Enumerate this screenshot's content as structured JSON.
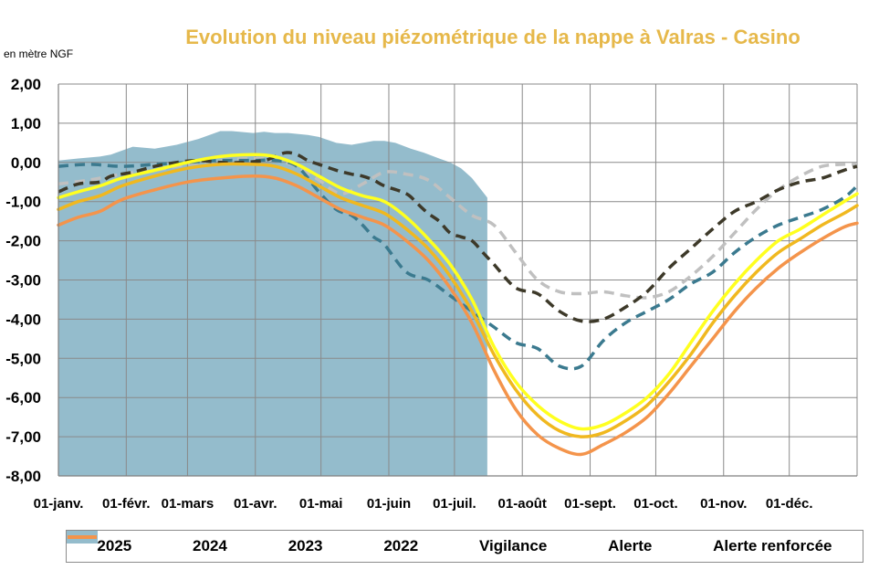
{
  "chart_data": {
    "type": "line",
    "title": "Evolution du niveau piézométrique de la nappe à Valras - Casino",
    "ylabel": "en mètre NGF",
    "ylim": [
      -8,
      2
    ],
    "yticks": [
      2,
      1,
      0,
      -1,
      -2,
      -3,
      -4,
      -5,
      -6,
      -7,
      -8
    ],
    "ytick_labels": [
      "2,00",
      "1,00",
      "0,00",
      "-1,00",
      "-2,00",
      "-3,00",
      "-4,00",
      "-5,00",
      "-6,00",
      "-7,00",
      "-8,00"
    ],
    "xlim": [
      1,
      366
    ],
    "xtick_days": [
      1,
      32,
      60,
      91,
      121,
      152,
      182,
      213,
      244,
      274,
      305,
      335
    ],
    "xtick_labels": [
      "01-janv.",
      "01-févr.",
      "01-mars",
      "01-avr.",
      "01-mai",
      "01-juin",
      "01-juil.",
      "01-août",
      "01-sept.",
      "01-oct.",
      "01-nov.",
      "01-déc."
    ],
    "grid": true,
    "legend_position": "bottom",
    "series": [
      {
        "name": "2025",
        "kind": "area",
        "color": "#94bccc",
        "x": [
          1,
          10,
          20,
          25,
          35,
          45,
          55,
          65,
          75,
          80,
          90,
          95,
          100,
          106,
          115,
          120,
          128,
          135,
          140,
          145,
          150,
          155,
          162,
          168,
          175,
          180,
          185,
          190,
          197
        ],
        "y": [
          0.05,
          0.1,
          0.15,
          0.2,
          0.4,
          0.35,
          0.45,
          0.6,
          0.8,
          0.8,
          0.75,
          0.78,
          0.75,
          0.75,
          0.7,
          0.65,
          0.5,
          0.45,
          0.5,
          0.55,
          0.55,
          0.5,
          0.35,
          0.25,
          0.1,
          0.0,
          -0.15,
          -0.4,
          -0.9
        ]
      },
      {
        "name": "2024",
        "kind": "line",
        "dash": "dashed",
        "color": "#c0c0c0",
        "x": [
          1,
          15,
          30,
          45,
          60,
          75,
          90,
          100,
          110,
          120,
          130,
          140,
          150,
          160,
          170,
          180,
          190,
          200,
          210,
          220,
          230,
          240,
          250,
          260,
          270,
          280,
          290,
          300,
          310,
          320,
          330,
          340,
          350,
          360,
          366
        ],
        "y": [
          -0.55,
          -0.45,
          -0.3,
          -0.2,
          -0.05,
          0.05,
          0.1,
          0.05,
          -0.1,
          -0.45,
          -0.8,
          -0.55,
          -0.25,
          -0.3,
          -0.45,
          -0.9,
          -1.35,
          -1.6,
          -2.3,
          -3.0,
          -3.3,
          -3.35,
          -3.3,
          -3.4,
          -3.45,
          -3.3,
          -2.9,
          -2.4,
          -1.8,
          -1.2,
          -0.7,
          -0.35,
          -0.1,
          -0.05,
          -0.05
        ]
      },
      {
        "name": "2023",
        "kind": "line",
        "dash": "dashed",
        "color": "#3b7a8f",
        "x": [
          1,
          15,
          30,
          45,
          60,
          75,
          90,
          100,
          110,
          120,
          128,
          135,
          140,
          145,
          150,
          160,
          170,
          180,
          190,
          200,
          210,
          220,
          230,
          240,
          250,
          260,
          270,
          280,
          290,
          300,
          310,
          320,
          330,
          340,
          350,
          360,
          366
        ],
        "y": [
          -0.1,
          -0.05,
          -0.1,
          -0.05,
          0.0,
          0.05,
          0.05,
          0.05,
          -0.1,
          -0.75,
          -1.2,
          -1.35,
          -1.6,
          -1.9,
          -2.1,
          -2.8,
          -3.0,
          -3.4,
          -3.8,
          -4.2,
          -4.6,
          -4.75,
          -5.2,
          -5.2,
          -4.55,
          -4.1,
          -3.8,
          -3.5,
          -3.1,
          -2.8,
          -2.3,
          -1.9,
          -1.6,
          -1.4,
          -1.2,
          -0.9,
          -0.6
        ]
      },
      {
        "name": "2022",
        "kind": "line",
        "dash": "dashed",
        "color": "#3d3929",
        "x": [
          1,
          10,
          20,
          25,
          35,
          45,
          55,
          65,
          75,
          85,
          95,
          100,
          105,
          110,
          115,
          120,
          128,
          135,
          140,
          145,
          150,
          160,
          165,
          170,
          175,
          180,
          185,
          190,
          195,
          200,
          210,
          220,
          230,
          240,
          250,
          260,
          270,
          280,
          290,
          300,
          310,
          320,
          330,
          340,
          350,
          360,
          366
        ],
        "y": [
          -0.75,
          -0.55,
          -0.5,
          -0.35,
          -0.25,
          -0.1,
          0.0,
          0.05,
          0.0,
          0.0,
          0.05,
          0.15,
          0.25,
          0.2,
          0.05,
          -0.05,
          -0.2,
          -0.3,
          -0.35,
          -0.45,
          -0.6,
          -0.8,
          -1.05,
          -1.3,
          -1.5,
          -1.8,
          -1.9,
          -2.0,
          -2.3,
          -2.6,
          -3.2,
          -3.35,
          -3.8,
          -4.05,
          -4.0,
          -3.7,
          -3.3,
          -2.7,
          -2.2,
          -1.7,
          -1.25,
          -1.0,
          -0.7,
          -0.5,
          -0.4,
          -0.2,
          -0.1
        ]
      },
      {
        "name": "Vigilance",
        "kind": "line",
        "dash": "solid",
        "color": "#ffff1f",
        "x": [
          1,
          10,
          20,
          30,
          45,
          60,
          75,
          90,
          100,
          110,
          120,
          130,
          140,
          150,
          160,
          170,
          180,
          190,
          200,
          210,
          220,
          230,
          240,
          250,
          260,
          270,
          280,
          290,
          300,
          310,
          320,
          330,
          340,
          350,
          360,
          366
        ],
        "y": [
          -0.9,
          -0.75,
          -0.6,
          -0.4,
          -0.2,
          0.0,
          0.15,
          0.2,
          0.15,
          -0.05,
          -0.35,
          -0.65,
          -0.85,
          -1.0,
          -1.4,
          -1.95,
          -2.6,
          -3.5,
          -4.7,
          -5.6,
          -6.2,
          -6.6,
          -6.8,
          -6.7,
          -6.4,
          -6.0,
          -5.4,
          -4.6,
          -3.8,
          -3.1,
          -2.5,
          -2.0,
          -1.7,
          -1.35,
          -1.0,
          -0.8
        ]
      },
      {
        "name": "Alerte",
        "kind": "line",
        "dash": "solid",
        "color": "#f0b81f",
        "x": [
          1,
          10,
          20,
          30,
          45,
          60,
          75,
          90,
          100,
          110,
          120,
          130,
          140,
          150,
          160,
          170,
          180,
          190,
          200,
          210,
          220,
          230,
          240,
          250,
          260,
          270,
          280,
          290,
          300,
          310,
          320,
          330,
          340,
          350,
          360,
          366
        ],
        "y": [
          -1.2,
          -1.0,
          -0.85,
          -0.6,
          -0.35,
          -0.15,
          -0.05,
          -0.05,
          -0.1,
          -0.3,
          -0.6,
          -0.9,
          -1.1,
          -1.3,
          -1.7,
          -2.2,
          -2.9,
          -3.8,
          -4.9,
          -5.8,
          -6.45,
          -6.85,
          -7.0,
          -6.9,
          -6.6,
          -6.2,
          -5.6,
          -4.9,
          -4.1,
          -3.4,
          -2.8,
          -2.3,
          -1.95,
          -1.6,
          -1.3,
          -1.1
        ]
      },
      {
        "name": "Alerte renforcée",
        "kind": "line",
        "dash": "solid",
        "color": "#f4944b",
        "x": [
          1,
          10,
          20,
          30,
          45,
          60,
          75,
          90,
          100,
          110,
          120,
          130,
          140,
          150,
          160,
          170,
          180,
          190,
          200,
          210,
          220,
          230,
          240,
          250,
          260,
          270,
          280,
          290,
          300,
          310,
          320,
          330,
          340,
          350,
          360,
          366
        ],
        "y": [
          -1.6,
          -1.4,
          -1.25,
          -0.95,
          -0.7,
          -0.5,
          -0.4,
          -0.35,
          -0.4,
          -0.6,
          -0.9,
          -1.2,
          -1.4,
          -1.6,
          -2.0,
          -2.5,
          -3.2,
          -4.1,
          -5.3,
          -6.3,
          -6.95,
          -7.3,
          -7.45,
          -7.2,
          -6.9,
          -6.5,
          -5.9,
          -5.2,
          -4.5,
          -3.8,
          -3.2,
          -2.7,
          -2.3,
          -1.95,
          -1.65,
          -1.55
        ]
      }
    ]
  }
}
